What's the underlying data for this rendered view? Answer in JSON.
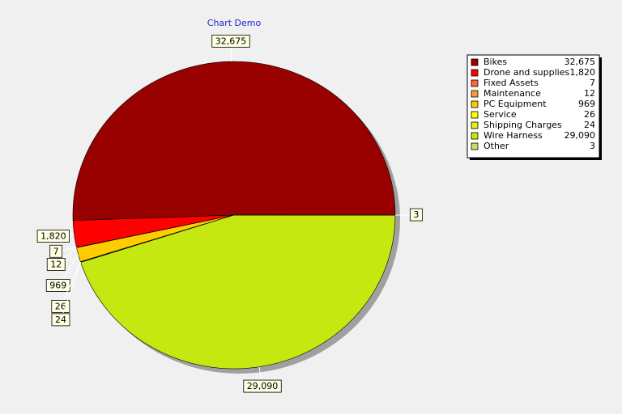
{
  "chart_data": {
    "type": "pie",
    "title": "Chart Demo",
    "categories": [
      "Bikes",
      "Drone and supplies",
      "Fixed Assets",
      "Maintenance",
      "PC Equipment",
      "Service",
      "Shipping Charges",
      "Wire Harness",
      "Other"
    ],
    "values": [
      32675,
      1820,
      7,
      12,
      969,
      26,
      24,
      29090,
      3
    ],
    "value_labels": [
      "32,675",
      "1,820",
      "7",
      "12",
      "969",
      "26",
      "24",
      "29,090",
      "3"
    ],
    "colors": [
      "#990000",
      "#ff0000",
      "#ff6633",
      "#ff9933",
      "#ffcc00",
      "#ffff00",
      "#ddee22",
      "#c4e810",
      "#ccdd66"
    ],
    "legend": "top-right"
  }
}
